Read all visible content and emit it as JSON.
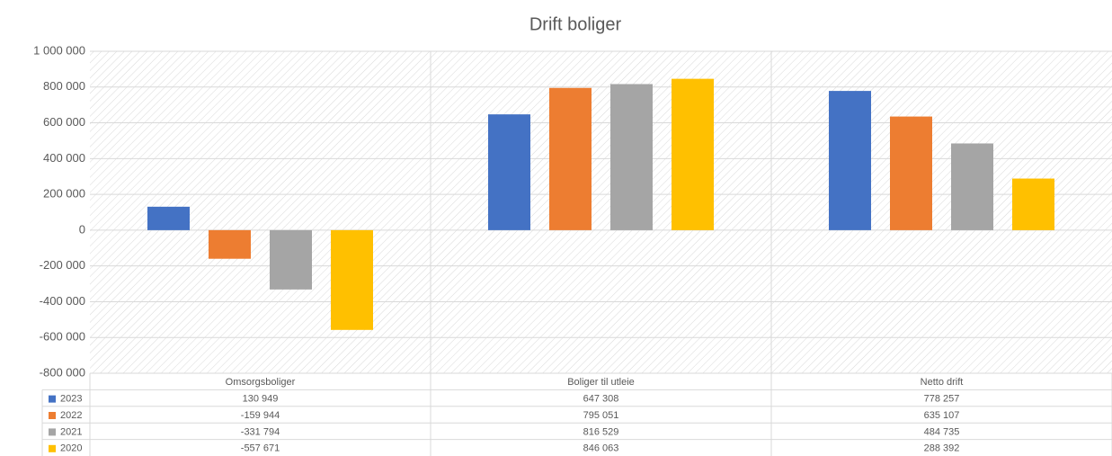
{
  "chart_data": {
    "type": "bar",
    "title": "Drift boliger",
    "categories": [
      "Omsorgsboliger",
      "Boliger til utleie",
      "Netto drift"
    ],
    "series": [
      {
        "name": "2023",
        "color": "#4472c4",
        "values": [
          130949,
          647308,
          778257
        ],
        "value_labels": [
          "130 949",
          "647 308",
          "778 257"
        ]
      },
      {
        "name": "2022",
        "color": "#ed7d31",
        "values": [
          -159944,
          795051,
          635107
        ],
        "value_labels": [
          "-159 944",
          "795 051",
          "635 107"
        ]
      },
      {
        "name": "2021",
        "color": "#a5a5a5",
        "values": [
          -331794,
          816529,
          484735
        ],
        "value_labels": [
          "-331 794",
          "816 529",
          "484 735"
        ]
      },
      {
        "name": "2020",
        "color": "#ffc000",
        "values": [
          -557671,
          846063,
          288392
        ],
        "value_labels": [
          "-557 671",
          "846 063",
          "288 392"
        ]
      }
    ],
    "ylim": [
      -800000,
      1000000
    ],
    "yticks": [
      {
        "value": -800000,
        "label": "-800 000"
      },
      {
        "value": -600000,
        "label": "-600 000"
      },
      {
        "value": -400000,
        "label": "-400 000"
      },
      {
        "value": -200000,
        "label": "-200 000"
      },
      0,
      {
        "value": 200000,
        "label": "200 000"
      },
      {
        "value": 400000,
        "label": "400 000"
      },
      {
        "value": 600000,
        "label": "600 000"
      },
      {
        "value": 800000,
        "label": "800 000"
      },
      {
        "value": 1000000,
        "label": "1 000 000"
      }
    ],
    "grid": true,
    "data_table": true
  }
}
